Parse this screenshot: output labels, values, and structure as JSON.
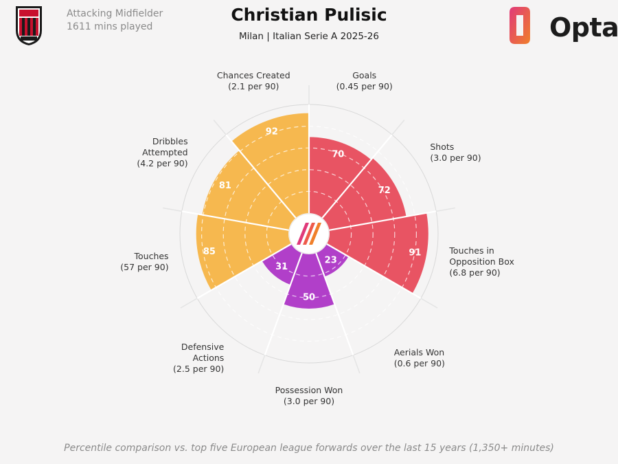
{
  "header": {
    "position": "Attacking Midfielder",
    "minutes": "1611 mins played",
    "player_name": "Christian Pulisic",
    "subtitle": "Milan | Italian Serie A 2025-26",
    "brand": "Opta"
  },
  "footnote": "Percentile comparison vs. top five European league forwards over the last 15 years (1,350+ minutes)",
  "colors": {
    "attacking": "#e85463",
    "possession": "#f6b84f",
    "defending": "#b13fc9",
    "background": "#f5f4f4"
  },
  "chart_data": {
    "type": "radar",
    "scale": [
      0,
      100
    ],
    "rings": [
      20,
      40,
      60,
      80
    ],
    "categories": [
      {
        "label": "Goals",
        "sublabel": "(0.45 per 90)",
        "value": 70,
        "group": "attacking"
      },
      {
        "label": "Shots",
        "sublabel": "(3.0 per 90)",
        "value": 72,
        "group": "attacking"
      },
      {
        "label": "Touches in Opposition Box",
        "label_lines": [
          "Touches in",
          "Opposition Box"
        ],
        "sublabel": "(6.8 per 90)",
        "value": 91,
        "group": "attacking"
      },
      {
        "label": "Aerials Won",
        "sublabel": "(0.6 per 90)",
        "value": 23,
        "group": "defending"
      },
      {
        "label": "Possession Won",
        "sublabel": "(3.0 per 90)",
        "value": 50,
        "group": "defending"
      },
      {
        "label": "Defensive Actions",
        "label_lines": [
          "Defensive",
          "Actions"
        ],
        "sublabel": "(2.5 per 90)",
        "value": 31,
        "group": "defending"
      },
      {
        "label": "Touches",
        "sublabel": "(57 per 90)",
        "value": 85,
        "group": "possession"
      },
      {
        "label": "Dribbles Attempted",
        "label_lines": [
          "Dribbles",
          "Attempted"
        ],
        "sublabel": "(4.2 per 90)",
        "value": 81,
        "group": "possession"
      },
      {
        "label": "Chances Created",
        "sublabel": "(2.1 per 90)",
        "value": 92,
        "group": "possession"
      }
    ]
  }
}
